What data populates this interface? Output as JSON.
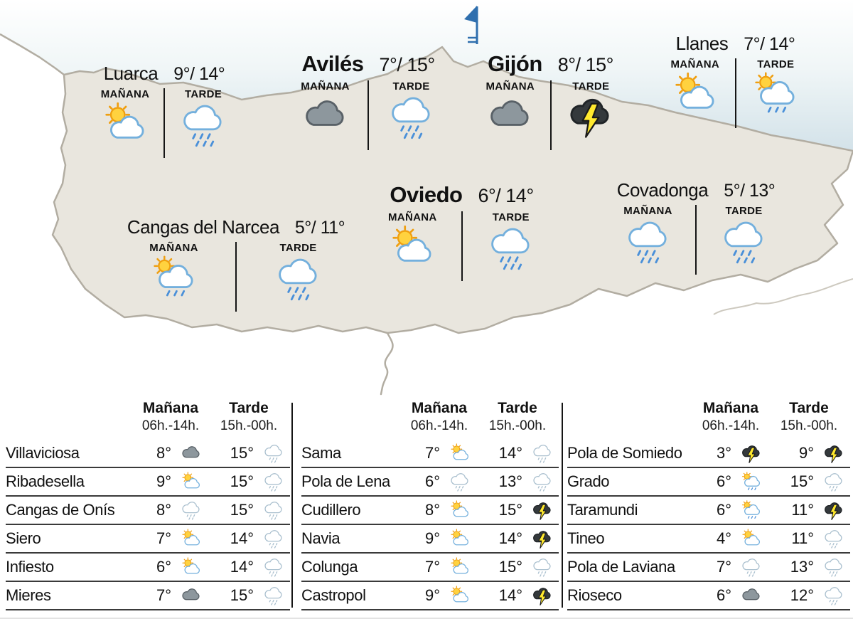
{
  "map": {
    "flag_icon": "pennant-flag",
    "cities": [
      {
        "name": "Luarca",
        "temps": "9°/ 14°",
        "morning_label": "MAÑANA",
        "afternoon_label": "TARDE",
        "morning_icon": "sun-cloud",
        "afternoon_icon": "rain"
      },
      {
        "name": "Avilés",
        "temps": "7°/ 15°",
        "morning_label": "MAÑANA",
        "afternoon_label": "TARDE",
        "morning_icon": "cloud-gray",
        "afternoon_icon": "rain"
      },
      {
        "name": "Gijón",
        "temps": "8°/ 15°",
        "morning_label": "MAÑANA",
        "afternoon_label": "TARDE",
        "morning_icon": "cloud-gray",
        "afternoon_icon": "storm-dark"
      },
      {
        "name": "Llanes",
        "temps": "7°/ 14°",
        "morning_label": "MAÑANA",
        "afternoon_label": "TARDE",
        "morning_icon": "sun-cloud",
        "afternoon_icon": "sun-rain"
      },
      {
        "name": "Oviedo",
        "temps": "6°/ 14°",
        "morning_label": "MAÑANA",
        "afternoon_label": "TARDE",
        "morning_icon": "sun-cloud",
        "afternoon_icon": "rain"
      },
      {
        "name": "Covadonga",
        "temps": "5°/ 13°",
        "morning_label": "MAÑANA",
        "afternoon_label": "TARDE",
        "morning_icon": "rain",
        "afternoon_icon": "rain"
      },
      {
        "name": "Cangas del Narcea",
        "temps": "5°/ 11°",
        "morning_label": "MAÑANA",
        "afternoon_label": "TARDE",
        "morning_icon": "sun-rain",
        "afternoon_icon": "rain"
      }
    ]
  },
  "tables": [
    {
      "header": {
        "morning": "Mañana",
        "afternoon": "Tarde",
        "morning_hours": "06h.-14h.",
        "afternoon_hours": "15h.-00h."
      },
      "rows": [
        {
          "name": "Villaviciosa",
          "morning_temp": "8°",
          "morning_icon": "cloud-gray",
          "afternoon_temp": "15°",
          "afternoon_icon": "rain-pale"
        },
        {
          "name": "Ribadesella",
          "morning_temp": "9°",
          "morning_icon": "sun-cloud",
          "afternoon_temp": "15°",
          "afternoon_icon": "rain-pale"
        },
        {
          "name": "Cangas de Onís",
          "morning_temp": "8°",
          "morning_icon": "rain-pale",
          "afternoon_temp": "15°",
          "afternoon_icon": "rain-pale"
        },
        {
          "name": "Siero",
          "morning_temp": "7°",
          "morning_icon": "sun-cloud",
          "afternoon_temp": "14°",
          "afternoon_icon": "rain-pale"
        },
        {
          "name": "Infiesto",
          "morning_temp": "6°",
          "morning_icon": "sun-cloud",
          "afternoon_temp": "14°",
          "afternoon_icon": "rain-pale"
        },
        {
          "name": "Mieres",
          "morning_temp": "7°",
          "morning_icon": "cloud-gray",
          "afternoon_temp": "15°",
          "afternoon_icon": "rain-pale"
        }
      ]
    },
    {
      "header": {
        "morning": "Mañana",
        "afternoon": "Tarde",
        "morning_hours": "06h.-14h.",
        "afternoon_hours": "15h.-00h."
      },
      "rows": [
        {
          "name": "Sama",
          "morning_temp": "7°",
          "morning_icon": "sun-cloud",
          "afternoon_temp": "14°",
          "afternoon_icon": "rain-pale"
        },
        {
          "name": "Pola de Lena",
          "morning_temp": "6°",
          "morning_icon": "rain-pale",
          "afternoon_temp": "13°",
          "afternoon_icon": "rain-pale"
        },
        {
          "name": "Cudillero",
          "morning_temp": "8°",
          "morning_icon": "sun-cloud",
          "afternoon_temp": "15°",
          "afternoon_icon": "storm-dark"
        },
        {
          "name": "Navia",
          "morning_temp": "9°",
          "morning_icon": "sun-cloud",
          "afternoon_temp": "14°",
          "afternoon_icon": "storm-dark"
        },
        {
          "name": "Colunga",
          "morning_temp": "7°",
          "morning_icon": "sun-cloud",
          "afternoon_temp": "15°",
          "afternoon_icon": "rain-pale"
        },
        {
          "name": "Castropol",
          "morning_temp": "9°",
          "morning_icon": "sun-cloud",
          "afternoon_temp": "14°",
          "afternoon_icon": "storm-dark"
        }
      ]
    },
    {
      "header": {
        "morning": "Mañana",
        "afternoon": "Tarde",
        "morning_hours": "06h.-14h.",
        "afternoon_hours": "15h.-00h."
      },
      "rows": [
        {
          "name": "Pola de Somiedo",
          "morning_temp": "3°",
          "morning_icon": "storm-dark",
          "afternoon_temp": "9°",
          "afternoon_icon": "storm-dark"
        },
        {
          "name": "Grado",
          "morning_temp": "6°",
          "morning_icon": "sun-rain",
          "afternoon_temp": "15°",
          "afternoon_icon": "rain-pale"
        },
        {
          "name": "Taramundi",
          "morning_temp": "6°",
          "morning_icon": "sun-rain",
          "afternoon_temp": "11°",
          "afternoon_icon": "storm-dark"
        },
        {
          "name": "Tineo",
          "morning_temp": "4°",
          "morning_icon": "sun-cloud",
          "afternoon_temp": "11°",
          "afternoon_icon": "rain-pale"
        },
        {
          "name": "Pola de Laviana",
          "morning_temp": "7°",
          "morning_icon": "rain-pale",
          "afternoon_temp": "13°",
          "afternoon_icon": "rain-pale"
        },
        {
          "name": "Rioseco",
          "morning_temp": "6°",
          "morning_icon": "cloud-gray",
          "afternoon_temp": "12°",
          "afternoon_icon": "rain-pale"
        }
      ]
    }
  ],
  "colors": {
    "sea": "#d3e2e9",
    "land": "#e9e6de",
    "outline": "#b2ada2",
    "rain_blue": "#4a90d9",
    "pale_blue": "#a9bfce",
    "sun_yellow": "#ffd23f",
    "bolt_yellow": "#ffe92e",
    "storm_cloud": "#34393c",
    "flag_blue": "#2f6fae"
  }
}
